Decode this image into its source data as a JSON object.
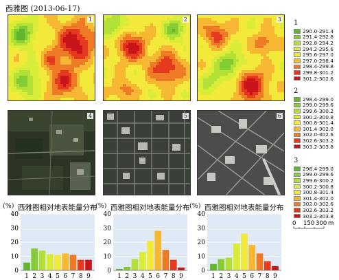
{
  "title": "西雅图 (2013-06-17)",
  "panels": {
    "heatmaps": [
      {
        "label": "1"
      },
      {
        "label": "2"
      },
      {
        "label": "3"
      }
    ],
    "photos": [
      {
        "label": "4"
      },
      {
        "label": "5"
      },
      {
        "label": "6"
      }
    ]
  },
  "legends": [
    {
      "label": "1",
      "items": [
        "290.0-291.4",
        "291.4-292.8",
        "292.8-294.2",
        "294.2-295.6",
        "295.6-297.0",
        "297.0-298.4",
        "298.4-299.8",
        "299.8-301.2",
        "301.2-302.6"
      ]
    },
    {
      "label": "2",
      "items": [
        "298.4-299.0",
        "299.0-299.6",
        "299.6-300.2",
        "300.2-300.8",
        "300.8-301.4",
        "301.4-302.0",
        "302.0-302.6",
        "302.6-303.2",
        "303.2-303.8"
      ]
    },
    {
      "label": "3",
      "items": [
        "298.4-299.0",
        "299.0-299.6",
        "299.6-300.2",
        "300.2-300.8",
        "300.8-301.4",
        "301.4-302.0",
        "302.0-302.6",
        "302.6-303.2",
        "303.2-303.8"
      ]
    }
  ],
  "class_colors": [
    "#5fb52c",
    "#84cc34",
    "#b3e036",
    "#d8ec38",
    "#f2e93a",
    "#f6b733",
    "#ef7a25",
    "#e53a1e",
    "#c8141a"
  ],
  "scale_bar": {
    "ticks": [
      "0",
      "150",
      "300"
    ],
    "unit": "m"
  },
  "chart_data": [
    {
      "type": "bar",
      "title": "西雅图相对地表能量分布",
      "unit_label": "(%)",
      "categories": [
        "1",
        "2",
        "3",
        "4",
        "5",
        "6",
        "7",
        "8",
        "9"
      ],
      "values": [
        5.5,
        15.5,
        14,
        11.5,
        11,
        12,
        11,
        7.5,
        7.5
      ],
      "ylim": [
        0,
        40
      ],
      "yticks": [
        "0",
        "10",
        "20",
        "30",
        "40"
      ]
    },
    {
      "type": "bar",
      "title": "西雅图相对地表能量分布",
      "unit_label": "(%)",
      "categories": [
        "1",
        "2",
        "3",
        "4",
        "5",
        "6",
        "7",
        "8",
        "9"
      ],
      "values": [
        1,
        2.5,
        8,
        13,
        21,
        28,
        14.5,
        7.5,
        2
      ],
      "ylim": [
        0,
        40
      ],
      "yticks": [
        "0",
        "10",
        "20",
        "30",
        "40"
      ]
    },
    {
      "type": "bar",
      "title": "西雅图相对地表能量分布",
      "unit_label": "(%)",
      "categories": [
        "1",
        "2",
        "3",
        "4",
        "5",
        "6",
        "7",
        "8",
        "9"
      ],
      "values": [
        4.5,
        8,
        9,
        19,
        26,
        18,
        12,
        6.5,
        3
      ],
      "ylim": [
        0,
        40
      ],
      "yticks": [
        "0",
        "10",
        "20",
        "30",
        "40"
      ]
    }
  ]
}
